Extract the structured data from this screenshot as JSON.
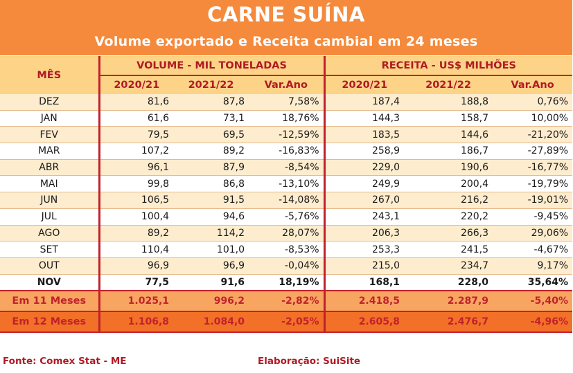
{
  "title": "CARNE SUÍNA",
  "subtitle": "Volume exportado e Receita cambial em 24 meses",
  "headers": {
    "mes": "MÊS",
    "volume_group": "VOLUME - MIL TONELADAS",
    "receita_group": "RECEITA - US$ MILHÕES",
    "col_2021": "2020/21",
    "col_2122": "2021/22",
    "col_var": "Var.Ano"
  },
  "rows": [
    {
      "mes": "DEZ",
      "v1": "81,6",
      "v2": "87,8",
      "vvar": "7,58%",
      "r1": "187,4",
      "r2": "188,8",
      "rvar": "0,76%"
    },
    {
      "mes": "JAN",
      "v1": "61,6",
      "v2": "73,1",
      "vvar": "18,76%",
      "r1": "144,3",
      "r2": "158,7",
      "rvar": "10,00%"
    },
    {
      "mes": "FEV",
      "v1": "79,5",
      "v2": "69,5",
      "vvar": "-12,59%",
      "r1": "183,5",
      "r2": "144,6",
      "rvar": "-21,20%"
    },
    {
      "mes": "MAR",
      "v1": "107,2",
      "v2": "89,2",
      "vvar": "-16,83%",
      "r1": "258,9",
      "r2": "186,7",
      "rvar": "-27,89%"
    },
    {
      "mes": "ABR",
      "v1": "96,1",
      "v2": "87,9",
      "vvar": "-8,54%",
      "r1": "229,0",
      "r2": "190,6",
      "rvar": "-16,77%"
    },
    {
      "mes": "MAI",
      "v1": "99,8",
      "v2": "86,8",
      "vvar": "-13,10%",
      "r1": "249,9",
      "r2": "200,4",
      "rvar": "-19,79%"
    },
    {
      "mes": "JUN",
      "v1": "106,5",
      "v2": "91,5",
      "vvar": "-14,08%",
      "r1": "267,0",
      "r2": "216,2",
      "rvar": "-19,01%"
    },
    {
      "mes": "JUL",
      "v1": "100,4",
      "v2": "94,6",
      "vvar": "-5,76%",
      "r1": "243,1",
      "r2": "220,2",
      "rvar": "-9,45%"
    },
    {
      "mes": "AGO",
      "v1": "89,2",
      "v2": "114,2",
      "vvar": "28,07%",
      "r1": "206,3",
      "r2": "266,3",
      "rvar": "29,06%"
    },
    {
      "mes": "SET",
      "v1": "110,4",
      "v2": "101,0",
      "vvar": "-8,53%",
      "r1": "253,3",
      "r2": "241,5",
      "rvar": "-4,67%"
    },
    {
      "mes": "OUT",
      "v1": "96,9",
      "v2": "96,9",
      "vvar": "-0,04%",
      "r1": "215,0",
      "r2": "234,7",
      "rvar": "9,17%"
    },
    {
      "mes": "NOV",
      "v1": "77,5",
      "v2": "91,6",
      "vvar": "18,19%",
      "r1": "168,1",
      "r2": "228,0",
      "rvar": "35,64%"
    }
  ],
  "totals": [
    {
      "mes": "Em 11 Meses",
      "v1": "1.025,1",
      "v2": "996,2",
      "vvar": "-2,82%",
      "r1": "2.418,5",
      "r2": "2.287,9",
      "rvar": "-5,40%"
    },
    {
      "mes": "Em 12 Meses",
      "v1": "1.106,8",
      "v2": "1.084,0",
      "vvar": "-2,05%",
      "r1": "2.605,8",
      "r2": "2.476,7",
      "rvar": "-4,96%"
    }
  ],
  "footer": {
    "source": "Fonte: Comex Stat - ME",
    "credit": "Elaboração: SuiSite"
  },
  "colors": {
    "title_band": "#f58a3c",
    "header_bg": "#fdd388",
    "accent_red": "#c0222c",
    "row_alt": "#fdeccd",
    "total_11": "#f8a562",
    "total_12": "#f37028"
  }
}
